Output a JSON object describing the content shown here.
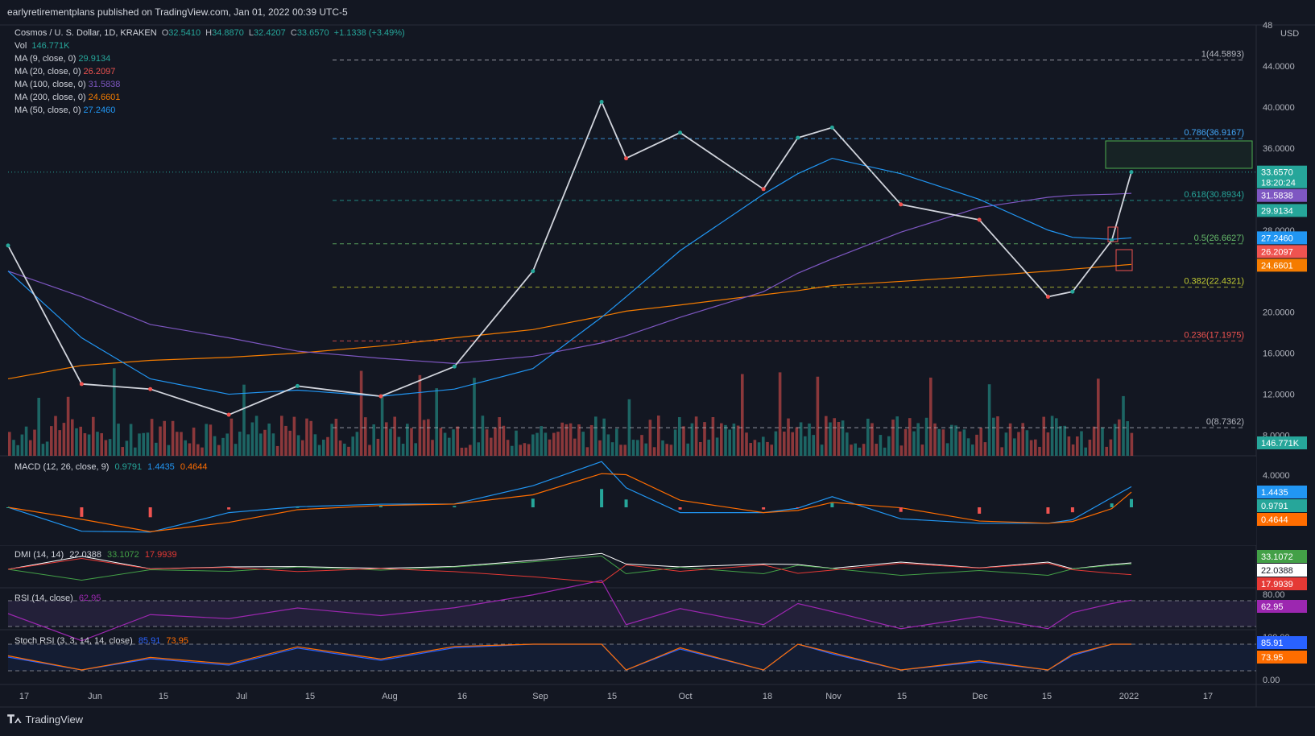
{
  "header": {
    "publish_line": "earlyretirementplans published on TradingView.com, Jan 01, 2022 00:39 UTC-5"
  },
  "main_legend": {
    "symbol": "Cosmos / U. S. Dollar, 1D, KRAKEN",
    "o_label": "O",
    "o": "32.5410",
    "h_label": "H",
    "h": "34.8870",
    "l_label": "L",
    "l": "32.4207",
    "c_label": "C",
    "c": "33.6570",
    "change": "+1.1338 (+3.49%)",
    "vol_label": "Vol",
    "vol": "146.771K",
    "ma_lines": [
      {
        "label": "MA (9, close, 0)",
        "value": "29.9134",
        "color": "#26a69a"
      },
      {
        "label": "MA (20, close, 0)",
        "value": "26.2097",
        "color": "#ef5350"
      },
      {
        "label": "MA (100, close, 0)",
        "value": "31.5838",
        "color": "#7e57c2"
      },
      {
        "label": "MA (200, close, 0)",
        "value": "24.6601",
        "color": "#f57c00"
      },
      {
        "label": "MA (50, close, 0)",
        "value": "27.2460",
        "color": "#2196f3"
      }
    ]
  },
  "price_axis": {
    "currency_label": "USD",
    "ticks": [
      "48",
      "44.0000",
      "40.0000",
      "36.0000",
      "28.0000",
      "20.0000",
      "16.0000",
      "12.0000",
      "8.0000"
    ],
    "tags": [
      {
        "text": "33.6570",
        "subtext": "18:20:24",
        "color": "#26a69a"
      },
      {
        "text": "31.5838",
        "color": "#7e57c2"
      },
      {
        "text": "29.9134",
        "color": "#26a69a"
      },
      {
        "text": "27.2460",
        "color": "#2196f3"
      },
      {
        "text": "26.2097",
        "color": "#ef5350"
      },
      {
        "text": "24.6601",
        "color": "#f57c00"
      },
      {
        "text": "146.771K",
        "color": "#26a69a"
      }
    ]
  },
  "fib_labels": [
    {
      "text": "1(44.5893)",
      "color": "#b2b5be"
    },
    {
      "text": "0.786(36.9167)",
      "color": "#42a5f5"
    },
    {
      "text": "0.618(30.8934)",
      "color": "#26a69a"
    },
    {
      "text": "0.5(26.6627)",
      "color": "#66bb6a"
    },
    {
      "text": "0.382(22.4321)",
      "color": "#c0ca33"
    },
    {
      "text": "0.236(17.1975)",
      "color": "#ef5350"
    },
    {
      "text": "0(8.7362)",
      "color": "#b2b5be"
    }
  ],
  "macd": {
    "label": "MACD (12, 26, close, 9)",
    "v1": "0.9791",
    "v2": "1.4435",
    "v3": "0.4644",
    "axis_ticks": [
      "4.0000"
    ],
    "tags": [
      {
        "text": "1.4435",
        "color": "#2196f3"
      },
      {
        "text": "0.9791",
        "color": "#26a69a"
      },
      {
        "text": "0.4644",
        "color": "#ff6d00"
      }
    ]
  },
  "dmi": {
    "label": "DMI (14, 14)",
    "v1": "22.0388",
    "v2": "33.1072",
    "v3": "17.9939",
    "tags": [
      {
        "text": "33.1072",
        "color": "#43a047"
      },
      {
        "text": "22.0388",
        "color": "#ffffff"
      },
      {
        "text": "17.9939",
        "color": "#e53935"
      }
    ]
  },
  "rsi": {
    "label": "RSI (14, close)",
    "value": "62.95",
    "axis_ticks": [
      "80.00"
    ],
    "tags": [
      {
        "text": "62.95",
        "color": "#9c27b0"
      }
    ]
  },
  "stoch": {
    "label": "Stoch RSI (3, 3, 14, 14, close)",
    "k": "85.91",
    "d": "73.95",
    "axis_ticks": [
      "100.00",
      "0.00"
    ],
    "tags": [
      {
        "text": "85.91",
        "color": "#2962ff"
      },
      {
        "text": "73.95",
        "color": "#ff6d00"
      }
    ]
  },
  "time_axis": {
    "labels": [
      "17",
      "Jun",
      "15",
      "Jul",
      "15",
      "Aug",
      "16",
      "Sep",
      "15",
      "Oct",
      "18",
      "Nov",
      "15",
      "Dec",
      "15",
      "2022",
      "17"
    ]
  },
  "brand": {
    "text": "TradingView"
  },
  "chart_data": {
    "type": "line",
    "title": "Cosmos / U. S. Dollar, 1D, KRAKEN",
    "x": [
      "2021-05-17",
      "2021-06-01",
      "2021-06-15",
      "2021-07-01",
      "2021-07-15",
      "2021-08-01",
      "2021-08-16",
      "2021-09-01",
      "2021-09-15",
      "2021-09-20",
      "2021-10-01",
      "2021-10-18",
      "2021-10-25",
      "2021-11-01",
      "2021-11-15",
      "2021-12-01",
      "2021-12-15",
      "2021-12-20",
      "2021-12-28",
      "2022-01-01"
    ],
    "series": [
      {
        "name": "Cosmos / U. S. Dollar",
        "values": [
          26.5,
          13.0,
          12.5,
          10.0,
          12.8,
          11.8,
          14.7,
          24.0,
          40.5,
          35.0,
          37.5,
          32.0,
          37.0,
          38.0,
          30.5,
          29.0,
          21.5,
          22.0,
          27.0,
          33.66
        ]
      },
      {
        "name": "MA (200, close, 0)",
        "values": [
          13.5,
          14.8,
          15.3,
          15.6,
          16.0,
          16.7,
          17.5,
          18.3,
          19.6,
          20.1,
          20.7,
          21.7,
          22.1,
          22.6,
          23.0,
          23.5,
          24.0,
          24.2,
          24.5,
          24.66
        ]
      },
      {
        "name": "MA (100, close, 0)",
        "values": [
          24.0,
          21.5,
          18.8,
          17.5,
          16.2,
          15.5,
          15.0,
          15.7,
          17.0,
          17.7,
          19.5,
          22.0,
          23.8,
          25.2,
          27.8,
          30.2,
          31.2,
          31.4,
          31.5,
          31.58
        ]
      },
      {
        "name": "MA (50, close, 0)",
        "values": [
          24.0,
          17.5,
          13.5,
          12.0,
          12.4,
          11.8,
          12.5,
          14.5,
          19.5,
          21.5,
          26.0,
          31.5,
          33.5,
          35.0,
          33.5,
          31.0,
          28.0,
          27.3,
          27.1,
          27.25
        ]
      }
    ],
    "fib_levels": [
      {
        "ratio": 1,
        "value": 44.5893
      },
      {
        "ratio": 0.786,
        "value": 36.9167
      },
      {
        "ratio": 0.618,
        "value": 30.8934
      },
      {
        "ratio": 0.5,
        "value": 26.6627
      },
      {
        "ratio": 0.382,
        "value": 22.4321
      },
      {
        "ratio": 0.236,
        "value": 17.1975
      },
      {
        "ratio": 0,
        "value": 8.7362
      }
    ],
    "last_price": 33.657,
    "ylim": [
      6,
      48
    ],
    "xlabel": "",
    "ylabel": "",
    "grid": false
  }
}
